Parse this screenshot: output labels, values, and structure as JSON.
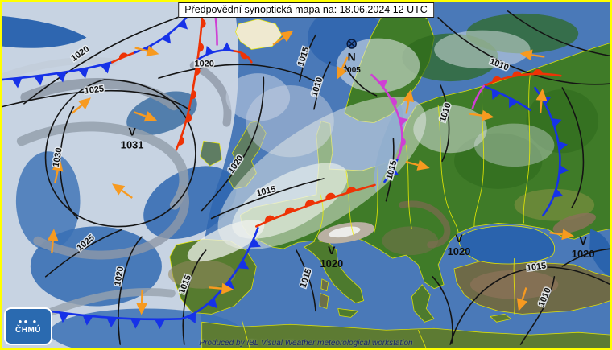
{
  "title": "Předpovědní synoptická mapa na: 18.06.2024 12 UTC",
  "footer_credit": "Produced by IBL Visual Weather meteorological workstation",
  "logo_text": "ČHMÚ",
  "pressure_centers": [
    {
      "symbol": "V",
      "value": "1031"
    },
    {
      "symbol": "N",
      "value": "1005"
    },
    {
      "symbol": "V",
      "value": "1020"
    },
    {
      "symbol": "V",
      "value": "1020"
    },
    {
      "symbol": "V",
      "value": "1020"
    }
  ],
  "isobar_labels": [
    "1020",
    "1025",
    "1020",
    "1030",
    "1025",
    "1020",
    "1020",
    "1015",
    "1015",
    "1010",
    "1015",
    "1015",
    "1010",
    "1010",
    "1015",
    "1015",
    "1010"
  ],
  "colors": {
    "frame_border": "#ffff00",
    "sea": "#4a79b8",
    "land_green": "#3f7b28",
    "country_border": "#f0f000",
    "isobar": "#141414",
    "cold_front": "#1632e8",
    "warm_front": "#ee3305",
    "occluded_front": "#cf3fd4",
    "wind_arrow": "#f79a20",
    "title_bg": "#ffffff",
    "credit_text": "#17246b",
    "logo_bg": "#2a6ab0"
  }
}
